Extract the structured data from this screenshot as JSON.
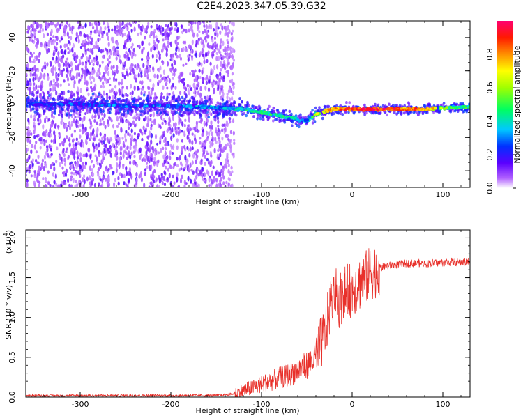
{
  "title": "C2E4.2023.347.05.39.G32",
  "chart_data": [
    {
      "type": "heatmap",
      "xlabel": "Height of straight line (km)",
      "ylabel": "Frequency (Hz)",
      "xlim": [
        -360,
        130
      ],
      "ylim": [
        -50,
        50
      ],
      "x_ticks": [
        -300,
        -200,
        -100,
        0,
        100
      ],
      "y_ticks": [
        -40,
        -20,
        0,
        20,
        40
      ],
      "colorbar": {
        "label": "Normalized spectral amplitude",
        "range": [
          0,
          1
        ],
        "ticks": [
          0.0,
          0.2,
          0.4,
          0.6,
          0.8
        ],
        "colormap": "rainbow"
      },
      "ridge": {
        "x": [
          -360,
          -300,
          -250,
          -200,
          -150,
          -120,
          -100,
          -80,
          -60,
          -50,
          -40,
          -30,
          -20,
          -10,
          0,
          20,
          50,
          80,
          110,
          130
        ],
        "freq": [
          0,
          0,
          -1,
          -1,
          -2,
          -3,
          -5,
          -7,
          -9,
          -10,
          -6,
          -4,
          -3,
          -3,
          -3,
          -3,
          -3,
          -3,
          -2,
          -2
        ],
        "amplitude": [
          0.25,
          0.25,
          0.3,
          0.3,
          0.35,
          0.45,
          0.5,
          0.45,
          0.4,
          0.35,
          0.6,
          0.75,
          0.85,
          0.9,
          0.95,
          0.95,
          0.9,
          0.85,
          0.5,
          0.5
        ]
      },
      "noise_extent_x": [
        -360,
        -140
      ]
    },
    {
      "type": "line",
      "xlabel": "Height of straight line (km)",
      "ylabel": "SNR (10 * v/v)",
      "yscale_label": "(x10",
      "yscale_exp": "4",
      "xlim": [
        -360,
        130
      ],
      "ylim": [
        0,
        2.1
      ],
      "x_ticks": [
        -300,
        -200,
        -100,
        0,
        100
      ],
      "y_ticks": [
        0.0,
        0.5,
        1.0,
        1.5,
        2.0
      ],
      "series": [
        {
          "color": "#e8302a",
          "x": [
            -360,
            -300,
            -250,
            -200,
            -150,
            -130,
            -110,
            -90,
            -70,
            -50,
            -40,
            -30,
            -25,
            -20,
            -15,
            -10,
            0,
            10,
            20,
            30,
            40,
            60,
            80,
            100,
            130
          ],
          "y": [
            0.02,
            0.02,
            0.02,
            0.02,
            0.02,
            0.04,
            0.12,
            0.2,
            0.28,
            0.4,
            0.5,
            0.8,
            1.1,
            1.35,
            1.2,
            1.3,
            1.35,
            1.45,
            1.55,
            1.62,
            1.65,
            1.68,
            1.68,
            1.69,
            1.7
          ]
        }
      ]
    }
  ]
}
